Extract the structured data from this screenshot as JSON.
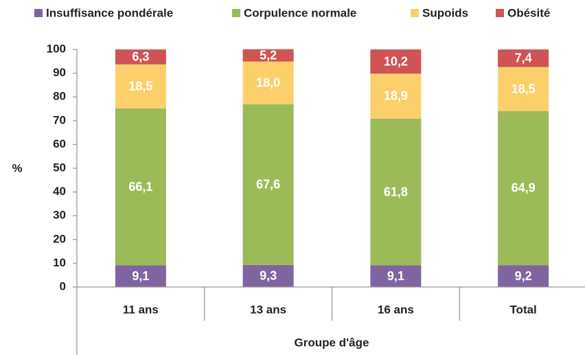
{
  "chart_data": {
    "type": "stacked_bar",
    "categories": [
      "11 ans",
      "13 ans",
      "16 ans",
      "Total"
    ],
    "series": [
      {
        "name": "Insuffisance pondérale",
        "color": "#8064a2",
        "values": [
          9.1,
          9.3,
          9.1,
          9.2
        ],
        "value_labels": [
          "9,1",
          "9,3",
          "9,1",
          "9,2"
        ]
      },
      {
        "name": "Corpulence normale",
        "color": "#9bbb59",
        "values": [
          66.1,
          67.6,
          61.8,
          64.9
        ],
        "value_labels": [
          "66,1",
          "67,6",
          "61,8",
          "64,9"
        ]
      },
      {
        "name": "Supoids",
        "color": "#fdcf6a",
        "values": [
          18.5,
          18.0,
          18.9,
          18.5
        ],
        "value_labels": [
          "18,5",
          "18,0",
          "18,9",
          "18,5"
        ]
      },
      {
        "name": "Obésité",
        "color": "#d05454",
        "values": [
          6.3,
          5.2,
          10.2,
          7.4
        ],
        "value_labels": [
          "6,3",
          "5,2",
          "10,2",
          "7,4"
        ]
      }
    ],
    "ylabel": "%",
    "xlabel": "Groupe d'âge",
    "ylim": [
      0,
      100
    ],
    "yticks": [
      0,
      10,
      20,
      30,
      40,
      50,
      60,
      70,
      80,
      90,
      100
    ],
    "grid": false,
    "legend": "top"
  }
}
